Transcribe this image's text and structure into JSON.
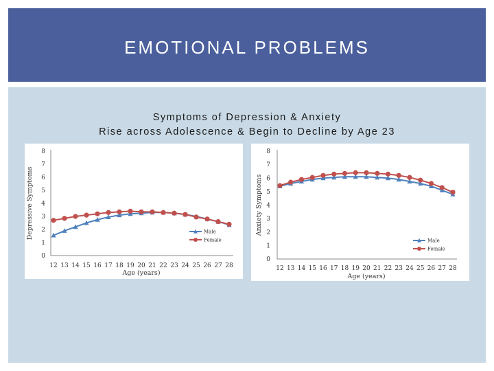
{
  "slide": {
    "title": "EMOTIONAL PROBLEMS",
    "subtitle_line1": "Symptoms of Depression & Anxiety",
    "subtitle_line2": "Rise across Adolescence &  Begin to Decline by Age 23"
  },
  "colors": {
    "header": "#4a5f9c",
    "content": "#c9dae6",
    "male": "#4f81bd",
    "female": "#c0504d"
  },
  "chart_data": [
    {
      "type": "line",
      "ylabel": "Depressive Symptoms",
      "xlabel": "Age (years)",
      "ylim": [
        0,
        8
      ],
      "yticks": [
        "0",
        "1",
        "2",
        "3",
        "4",
        "5",
        "6",
        "7",
        "8"
      ],
      "categories": [
        "12",
        "13",
        "14",
        "15",
        "16",
        "17",
        "18",
        "19",
        "20",
        "21",
        "22",
        "23",
        "24",
        "25",
        "26",
        "27",
        "28"
      ],
      "legend_position": "bottom-right",
      "series": [
        {
          "name": "Male",
          "color": "#4f81bd",
          "marker": "triangle",
          "values": [
            1.55,
            1.9,
            2.2,
            2.5,
            2.75,
            2.95,
            3.1,
            3.2,
            3.25,
            3.3,
            3.3,
            3.25,
            3.15,
            3.0,
            2.8,
            2.6,
            2.35
          ]
        },
        {
          "name": "Female",
          "color": "#c0504d",
          "marker": "circle",
          "values": [
            2.7,
            2.85,
            3.0,
            3.1,
            3.2,
            3.3,
            3.35,
            3.4,
            3.35,
            3.35,
            3.3,
            3.25,
            3.15,
            2.95,
            2.8,
            2.6,
            2.4
          ]
        }
      ]
    },
    {
      "type": "line",
      "ylabel": "Anxiety Symptoms",
      "xlabel": "Age (years)",
      "ylim": [
        0,
        8
      ],
      "yticks": [
        "0",
        "1",
        "2",
        "3",
        "4",
        "5",
        "6",
        "7",
        "8"
      ],
      "categories": [
        "12",
        "13",
        "14",
        "15",
        "16",
        "17",
        "18",
        "19",
        "20",
        "21",
        "22",
        "23",
        "24",
        "25",
        "26",
        "27",
        "28"
      ],
      "legend_position": "bottom-right",
      "series": [
        {
          "name": "Male",
          "color": "#4f81bd",
          "marker": "triangle",
          "values": [
            5.4,
            5.6,
            5.75,
            5.9,
            6.0,
            6.05,
            6.1,
            6.1,
            6.1,
            6.05,
            6.0,
            5.9,
            5.75,
            5.6,
            5.4,
            5.1,
            4.8
          ]
        },
        {
          "name": "Female",
          "color": "#c0504d",
          "marker": "circle",
          "values": [
            5.45,
            5.7,
            5.9,
            6.05,
            6.2,
            6.3,
            6.35,
            6.4,
            6.4,
            6.35,
            6.3,
            6.2,
            6.05,
            5.85,
            5.6,
            5.3,
            4.95
          ]
        }
      ]
    }
  ]
}
